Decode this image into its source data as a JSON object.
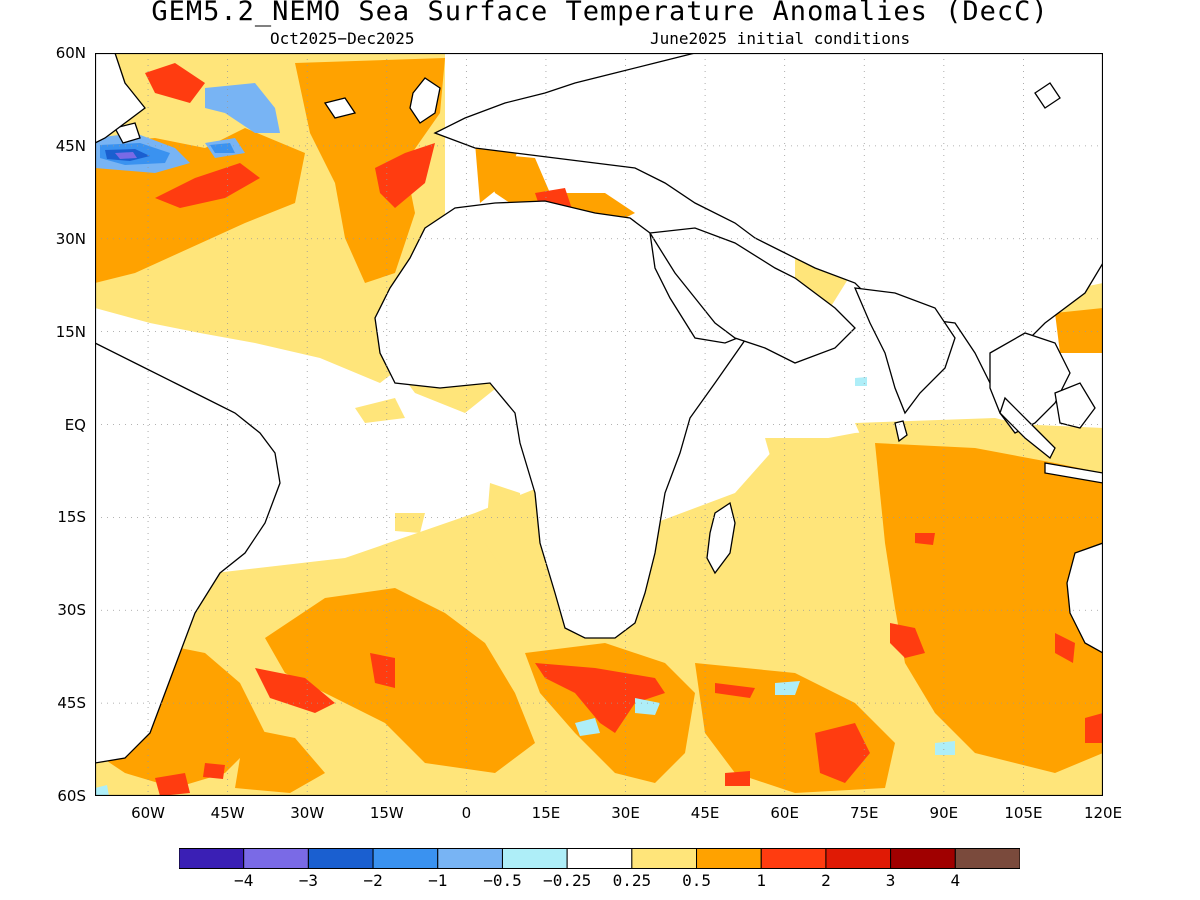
{
  "title": "GEM5.2_NEMO Sea Surface Temperature Anomalies (DecC)",
  "subtitle_left": "Oct2025−Dec2025",
  "subtitle_right": "June2025 initial conditions",
  "map": {
    "lon_range": [
      -70,
      120
    ],
    "lat_range": [
      -60,
      60
    ],
    "lat_ticks": [
      {
        "value": 60,
        "label": "60N"
      },
      {
        "value": 45,
        "label": "45N"
      },
      {
        "value": 30,
        "label": "30N"
      },
      {
        "value": 15,
        "label": "15N"
      },
      {
        "value": 0,
        "label": "EQ"
      },
      {
        "value": -15,
        "label": "15S"
      },
      {
        "value": -30,
        "label": "30S"
      },
      {
        "value": -45,
        "label": "45S"
      },
      {
        "value": -60,
        "label": "60S"
      }
    ],
    "lon_ticks": [
      {
        "value": -60,
        "label": "60W"
      },
      {
        "value": -45,
        "label": "45W"
      },
      {
        "value": -30,
        "label": "30W"
      },
      {
        "value": -15,
        "label": "15W"
      },
      {
        "value": 0,
        "label": "0"
      },
      {
        "value": 15,
        "label": "15E"
      },
      {
        "value": 30,
        "label": "30E"
      },
      {
        "value": 45,
        "label": "45E"
      },
      {
        "value": 60,
        "label": "60E"
      },
      {
        "value": 75,
        "label": "75E"
      },
      {
        "value": 90,
        "label": "90E"
      },
      {
        "value": 105,
        "label": "105E"
      },
      {
        "value": 120,
        "label": "120E"
      }
    ],
    "gridlines": true,
    "colors": {
      "neg4": "#3a1fb5",
      "neg3": "#7a6ae6",
      "neg2": "#1a5fd0",
      "neg1": "#3a92f0",
      "neg05": "#78b4f4",
      "neg025": "#aeeef8",
      "neutral": "#ffffff",
      "pos025": "#ffe57a",
      "pos05": "#ffa200",
      "pos1": "#ff3c10",
      "pos2": "#e01a05",
      "pos3": "#a00000",
      "pos4": "#7a4a3c",
      "land_outline": "#000000",
      "grid": "#999999"
    }
  },
  "colorbar": {
    "colors": [
      "#3a1fb5",
      "#7a6ae6",
      "#1a5fd0",
      "#3a92f0",
      "#78b4f4",
      "#aeeef8",
      "#ffffff",
      "#ffe57a",
      "#ffa200",
      "#ff3c10",
      "#e01a05",
      "#a00000",
      "#7a4a3c"
    ],
    "labels": [
      "−4",
      "−3",
      "−2",
      "−1",
      "−0.5",
      "−0.25",
      "0.25",
      "0.5",
      "1",
      "2",
      "3",
      "4"
    ]
  }
}
